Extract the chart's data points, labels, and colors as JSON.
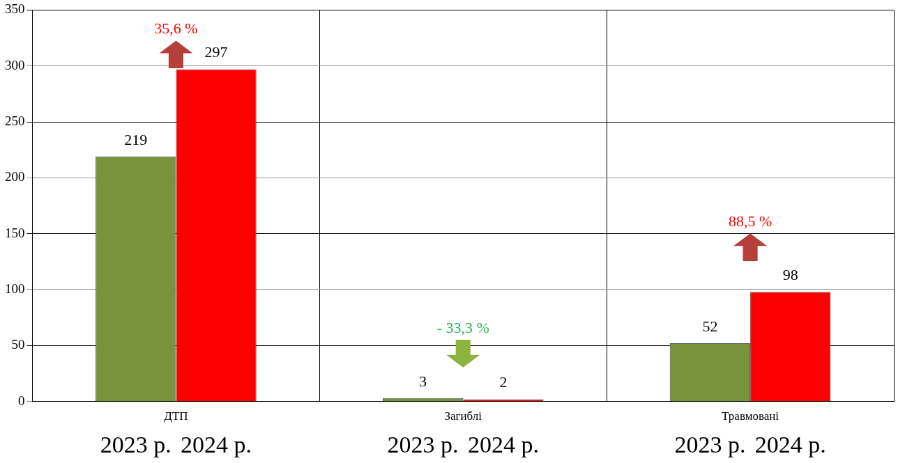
{
  "chart_data": {
    "type": "bar",
    "categories": [
      "ДТП",
      "Загиблі",
      "Травмовані"
    ],
    "series": [
      {
        "name": "2023 р.",
        "color": "#77933c",
        "values": [
          219,
          3,
          52
        ]
      },
      {
        "name": "2024 р.",
        "color": "#ff0000",
        "values": [
          297,
          2,
          98
        ]
      }
    ],
    "ylim": [
      0,
      350
    ],
    "yticks": [
      0,
      50,
      100,
      150,
      200,
      250,
      300,
      350
    ],
    "grid": true,
    "data_labels": true,
    "legend": "bottom",
    "annotations": [
      "35,6 %",
      "- 33,3 %",
      "88,5 %"
    ]
  }
}
